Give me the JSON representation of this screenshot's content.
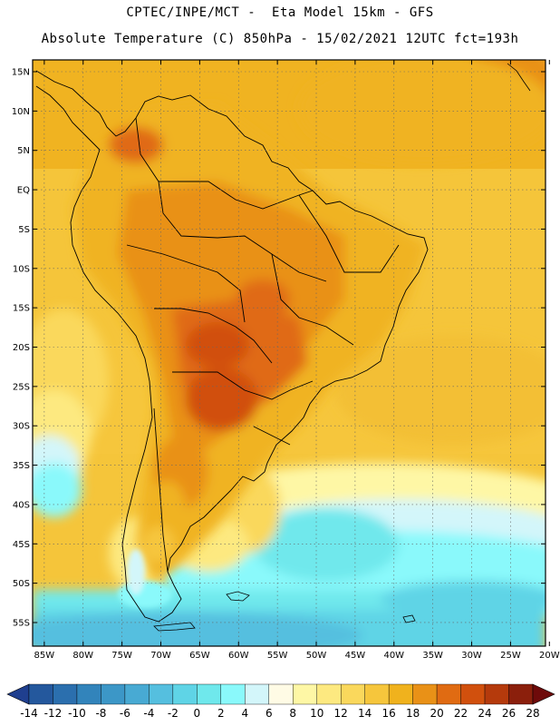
{
  "header": {
    "line1": "CPTEC/INPE/MCT -  Eta Model 15km - GFS",
    "line2": "Absolute Temperature (C) 850hPa - 15/02/2021 12UTC fct=193h"
  },
  "axes": {
    "lat_labels": [
      "15N",
      "10N",
      "5N",
      "EQ",
      "5S",
      "10S",
      "15S",
      "20S",
      "25S",
      "30S",
      "35S",
      "40S",
      "45S",
      "50S",
      "55S"
    ],
    "lat_values": [
      15,
      10,
      5,
      0,
      -5,
      -10,
      -15,
      -20,
      -25,
      -30,
      -35,
      -40,
      -45,
      -50,
      -55
    ],
    "lon_labels": [
      "85W",
      "80W",
      "75W",
      "70W",
      "65W",
      "60W",
      "55W",
      "50W",
      "45W",
      "40W",
      "35W",
      "30W",
      "25W",
      "20W"
    ],
    "lon_values": [
      -85,
      -80,
      -75,
      -70,
      -65,
      -60,
      -55,
      -50,
      -45,
      -40,
      -35,
      -30,
      -25,
      -20
    ],
    "lat_range": [
      -58,
      16.5
    ],
    "lon_range": [
      -86.5,
      -20.5
    ],
    "grid": "dotted"
  },
  "colorbar": {
    "unit": "C",
    "labels": [
      "-14",
      "-12",
      "-10",
      "-8",
      "-6",
      "-4",
      "-2",
      "0",
      "2",
      "4",
      "6",
      "8",
      "10",
      "12",
      "14",
      "16",
      "18",
      "20",
      "22",
      "24",
      "26",
      "28"
    ],
    "colors": [
      "#1f3f8f",
      "#24589d",
      "#2b6fae",
      "#3284bb",
      "#3c97c7",
      "#48aad3",
      "#55bfdf",
      "#5fd4e6",
      "#6fe8ec",
      "#8af9fb",
      "#d3f6fa",
      "#fffbe5",
      "#fef7a5",
      "#fde980",
      "#fad85c",
      "#f6c63c",
      "#f0b21d",
      "#e99117",
      "#e06b12",
      "#d1500d",
      "#b53a0c",
      "#8b1f0c",
      "#6e0a0a"
    ]
  }
}
